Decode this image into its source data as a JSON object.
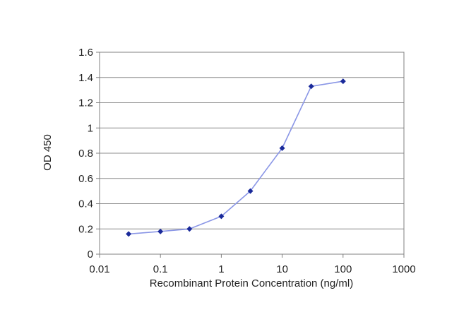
{
  "chart_data": {
    "type": "line",
    "title": "",
    "xlabel": "Recombinant Protein Concentration (ng/ml)",
    "ylabel": "OD 450",
    "x_scale": "log",
    "xlim": [
      0.01,
      1000
    ],
    "ylim": [
      0,
      1.6
    ],
    "x_ticks": [
      "0.01",
      "0.1",
      "1",
      "10",
      "100",
      "1000"
    ],
    "y_ticks": [
      "0",
      "0.2",
      "0.4",
      "0.6",
      "0.8",
      "1",
      "1.2",
      "1.4",
      "1.6"
    ],
    "grid": "horizontal",
    "legend": "none",
    "series": [
      {
        "x": [
          0.03,
          0.1,
          0.3,
          1,
          3,
          10,
          30,
          100
        ],
        "y": [
          0.16,
          0.18,
          0.2,
          0.3,
          0.5,
          0.84,
          1.33,
          1.37
        ],
        "color": "#8a96e6",
        "marker_color": "#1a2a9a"
      }
    ]
  }
}
